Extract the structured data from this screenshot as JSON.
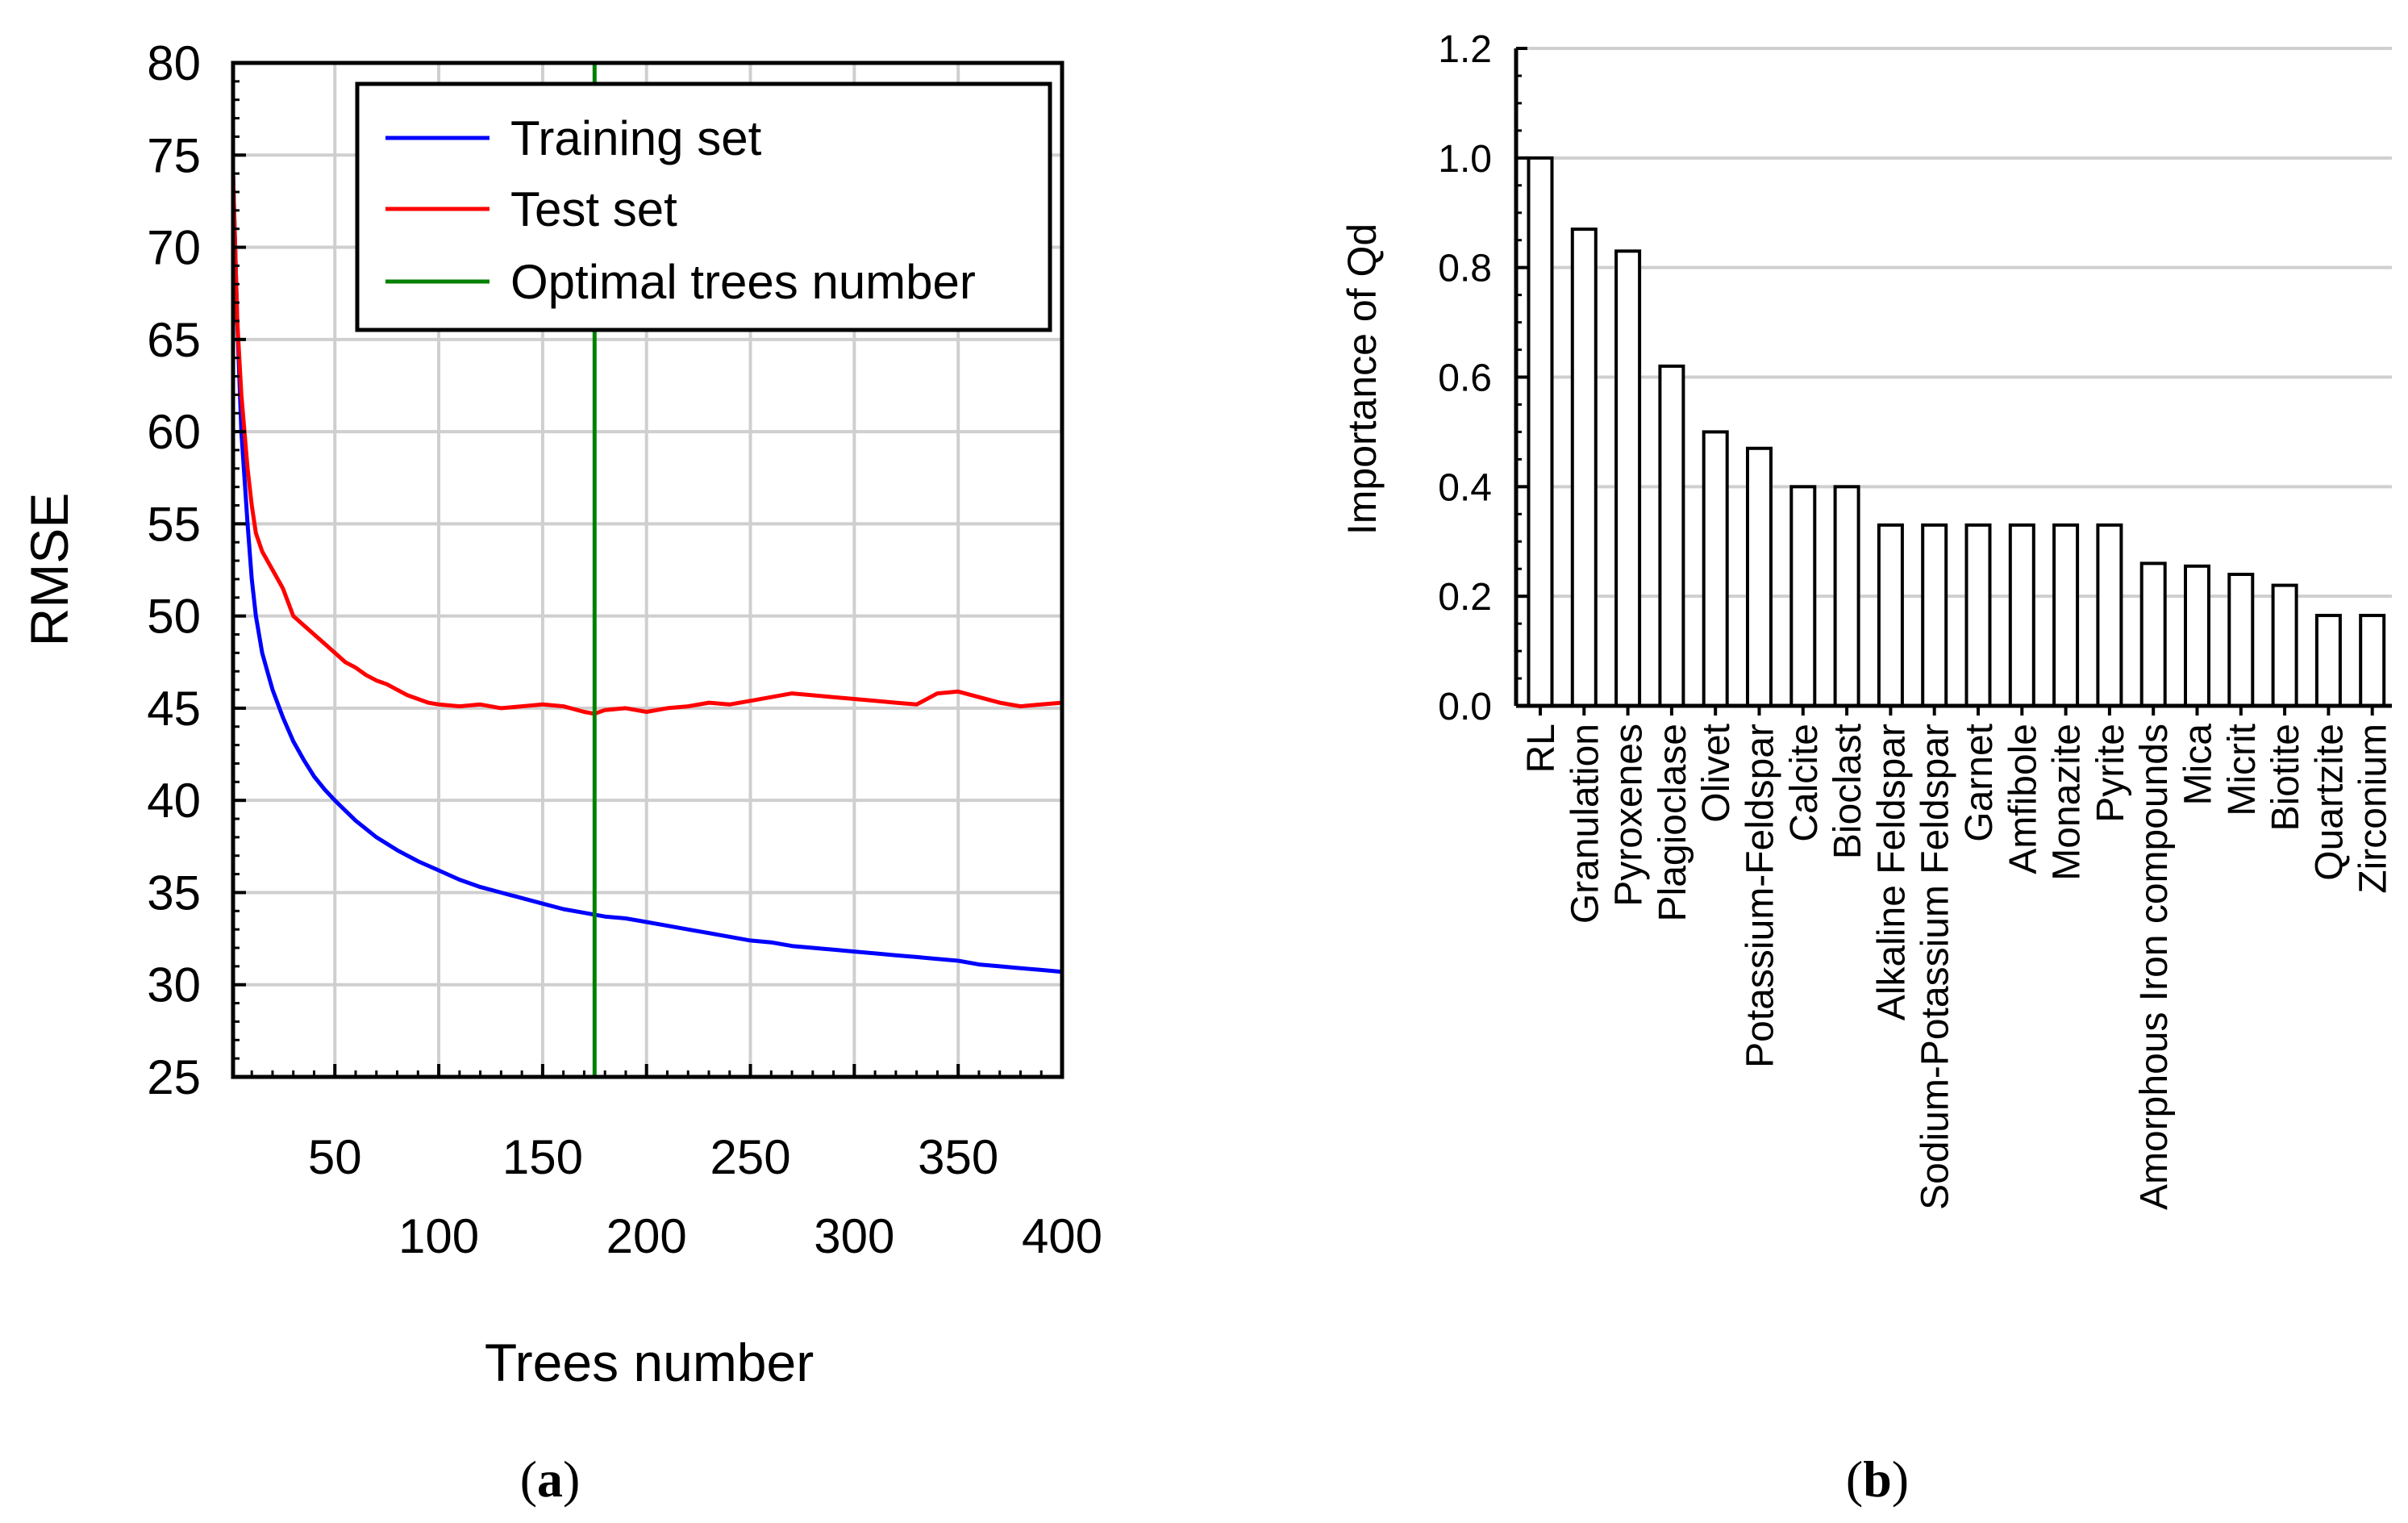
{
  "chart_data": [
    {
      "type": "line",
      "panel": "a",
      "panel_label": {
        "open": "(",
        "letter": "a",
        "close": ")"
      },
      "xlabel": "Trees number",
      "ylabel": "RMSE",
      "xlim": [
        1,
        400
      ],
      "ylim": [
        25,
        80
      ],
      "yticks": [
        25,
        30,
        35,
        40,
        45,
        50,
        55,
        60,
        65,
        70,
        75,
        80
      ],
      "xticks_upper": [
        50,
        150,
        250,
        350
      ],
      "xticks_lower": [
        100,
        200,
        300,
        400
      ],
      "grid": true,
      "legend_position": "top-right",
      "optimal_trees": 175,
      "series": [
        {
          "name": "Training set",
          "color": "#0000ff",
          "x": [
            1,
            3,
            5,
            8,
            10,
            12,
            15,
            18,
            20,
            25,
            30,
            35,
            40,
            45,
            50,
            60,
            70,
            80,
            90,
            100,
            110,
            120,
            130,
            140,
            150,
            160,
            170,
            180,
            190,
            200,
            210,
            220,
            230,
            240,
            250,
            260,
            270,
            280,
            290,
            300,
            310,
            320,
            330,
            340,
            350,
            360,
            370,
            380,
            390,
            400
          ],
          "y": [
            74,
            66,
            60,
            55,
            52,
            50,
            48,
            46.8,
            46,
            44.5,
            43.2,
            42.2,
            41.3,
            40.6,
            40,
            38.9,
            38,
            37.3,
            36.7,
            36.2,
            35.7,
            35.3,
            35,
            34.7,
            34.4,
            34.1,
            33.9,
            33.7,
            33.6,
            33.4,
            33.2,
            33,
            32.8,
            32.6,
            32.4,
            32.3,
            32.1,
            32,
            31.9,
            31.8,
            31.7,
            31.6,
            31.5,
            31.4,
            31.3,
            31.1,
            31,
            30.9,
            30.8,
            30.7
          ]
        },
        {
          "name": "Test set",
          "color": "#ff0000",
          "x": [
            1,
            3,
            5,
            8,
            10,
            12,
            15,
            20,
            25,
            30,
            35,
            40,
            45,
            50,
            55,
            60,
            65,
            70,
            75,
            80,
            85,
            90,
            95,
            100,
            110,
            120,
            130,
            140,
            150,
            160,
            170,
            175,
            180,
            190,
            200,
            210,
            220,
            230,
            240,
            250,
            260,
            270,
            280,
            290,
            300,
            310,
            320,
            330,
            340,
            350,
            360,
            370,
            380,
            390,
            400
          ],
          "y": [
            74,
            66,
            62,
            58,
            56,
            54.5,
            53.5,
            52.5,
            51.5,
            50,
            49.5,
            49,
            48.5,
            48,
            47.5,
            47.2,
            46.8,
            46.5,
            46.3,
            46,
            45.7,
            45.5,
            45.3,
            45.2,
            45.1,
            45.2,
            45,
            45.1,
            45.2,
            45.1,
            44.8,
            44.7,
            44.9,
            45,
            44.8,
            45,
            45.1,
            45.3,
            45.2,
            45.4,
            45.6,
            45.8,
            45.7,
            45.6,
            45.5,
            45.4,
            45.3,
            45.2,
            45.8,
            45.9,
            45.6,
            45.3,
            45.1,
            45.2,
            45.3
          ]
        },
        {
          "name": "Optimal trees number",
          "color": "#008000",
          "x": [
            175,
            175
          ],
          "y": [
            25,
            80
          ]
        }
      ]
    },
    {
      "type": "bar",
      "panel": "b",
      "panel_label": {
        "open": "(",
        "letter": "b",
        "close": ")"
      },
      "ylabel": "Importance of Qd",
      "xlabel": "",
      "ylim": [
        0.0,
        1.2
      ],
      "yticks": [
        "0.0",
        "0.2",
        "0.4",
        "0.6",
        "0.8",
        "1.0",
        "1.2"
      ],
      "grid": true,
      "categories": [
        "RL",
        "Granulation",
        "Pyroxenes",
        "Plagioclase",
        "Olivet",
        "Potassium-Feldspar",
        "Calcite",
        "Bioclast",
        "Alkaline Feldspar",
        "Sodium-Potassium Feldspar",
        "Garnet",
        "Amfibole",
        "Monazite",
        "Pyrite",
        "Amorphous Iron compounds",
        "Mica",
        "Micrit",
        "Biotite",
        "Quartzite",
        "Zirconium"
      ],
      "values": [
        1.0,
        0.87,
        0.83,
        0.62,
        0.5,
        0.47,
        0.4,
        0.4,
        0.33,
        0.33,
        0.33,
        0.33,
        0.33,
        0.33,
        0.26,
        0.255,
        0.24,
        0.22,
        0.165,
        0.165
      ]
    }
  ]
}
